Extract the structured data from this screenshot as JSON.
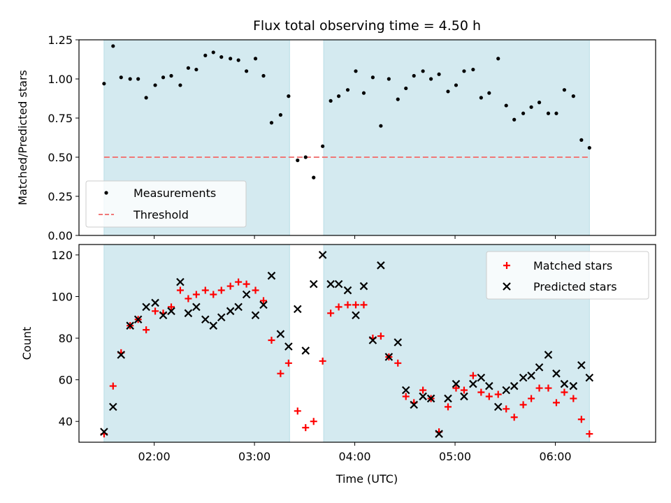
{
  "chart_data": {
    "title": "Flux total observing time = 4.50 h",
    "xlabel": "Time (UTC)",
    "x_unit": "hours UTC",
    "x_ticks": [
      {
        "value": 2.0,
        "label": "02:00"
      },
      {
        "value": 3.0,
        "label": "03:00"
      },
      {
        "value": 4.0,
        "label": "04:00"
      },
      {
        "value": 5.0,
        "label": "05:00"
      },
      {
        "value": 6.0,
        "label": "06:00"
      }
    ],
    "xlim": [
      1.25,
      7.0
    ],
    "shaded_spans": [
      [
        1.5,
        3.35
      ],
      [
        3.69,
        6.34
      ]
    ],
    "shade_color": "#d4eaf0",
    "panels": [
      {
        "type": "scatter",
        "ylabel": "Matched/Predicted stars",
        "ylim": [
          0.0,
          1.25
        ],
        "y_ticks": [
          "0.00",
          "0.25",
          "0.50",
          "0.75",
          "1.00",
          "1.25"
        ],
        "grid": false,
        "legend": {
          "position": "lower-left",
          "entries": [
            "Measurements",
            "Threshold"
          ]
        },
        "threshold": {
          "name": "Threshold",
          "value": 0.5,
          "x_range": [
            1.5,
            6.34
          ],
          "color": "#f07878"
        },
        "series": [
          {
            "name": "Measurements",
            "color": "#000000",
            "marker": "dot",
            "x": [
              1.5,
              1.59,
              1.67,
              1.76,
              1.84,
              1.92,
              2.01,
              2.09,
              2.17,
              2.26,
              2.34,
              2.42,
              2.51,
              2.59,
              2.67,
              2.76,
              2.84,
              2.92,
              3.01,
              3.09,
              3.17,
              3.26,
              3.34,
              3.43,
              3.51,
              3.59,
              3.68,
              3.76,
              3.84,
              3.93,
              4.01,
              4.09,
              4.18,
              4.26,
              4.34,
              4.43,
              4.51,
              4.59,
              4.68,
              4.76,
              4.84,
              4.93,
              5.01,
              5.09,
              5.18,
              5.26,
              5.34,
              5.43,
              5.51,
              5.59,
              5.68,
              5.76,
              5.84,
              5.93,
              6.01,
              6.09,
              6.18,
              6.26,
              6.34
            ],
            "y": [
              0.97,
              1.21,
              1.01,
              1.0,
              1.0,
              0.88,
              0.96,
              1.01,
              1.02,
              0.96,
              1.07,
              1.06,
              1.15,
              1.17,
              1.14,
              1.13,
              1.12,
              1.05,
              1.13,
              1.02,
              0.72,
              0.77,
              0.89,
              0.48,
              0.5,
              0.37,
              0.57,
              0.86,
              0.89,
              0.93,
              1.05,
              0.91,
              1.01,
              0.7,
              1.0,
              0.87,
              0.94,
              1.02,
              1.05,
              1.0,
              1.03,
              0.92,
              0.96,
              1.05,
              1.06,
              0.88,
              0.91,
              1.13,
              0.83,
              0.74,
              0.78,
              0.82,
              0.85,
              0.78,
              0.78,
              0.93,
              0.89,
              0.61,
              0.56
            ]
          }
        ]
      },
      {
        "type": "scatter",
        "ylabel": "Count",
        "ylim": [
          30,
          125
        ],
        "y_ticks": [
          "40",
          "60",
          "80",
          "100",
          "120"
        ],
        "grid": false,
        "legend": {
          "position": "top-right",
          "entries": [
            "Matched stars",
            "Predicted stars"
          ]
        },
        "series": [
          {
            "name": "Matched stars",
            "color": "#ff0000",
            "marker": "plus",
            "x": [
              1.5,
              1.59,
              1.67,
              1.76,
              1.84,
              1.92,
              2.01,
              2.09,
              2.17,
              2.26,
              2.34,
              2.42,
              2.51,
              2.59,
              2.67,
              2.76,
              2.84,
              2.92,
              3.01,
              3.09,
              3.17,
              3.26,
              3.34,
              3.43,
              3.51,
              3.59,
              3.68,
              3.76,
              3.84,
              3.93,
              4.01,
              4.09,
              4.18,
              4.26,
              4.34,
              4.43,
              4.51,
              4.59,
              4.68,
              4.76,
              4.84,
              4.93,
              5.01,
              5.09,
              5.18,
              5.26,
              5.34,
              5.43,
              5.51,
              5.59,
              5.68,
              5.76,
              5.84,
              5.93,
              6.01,
              6.09,
              6.18,
              6.26,
              6.34
            ],
            "y": [
              34,
              57,
              73,
              86,
              89,
              84,
              93,
              92,
              95,
              103,
              99,
              101,
              103,
              101,
              103,
              105,
              107,
              106,
              103,
              98,
              79,
              63,
              68,
              45,
              37,
              40,
              69,
              92,
              95,
              96,
              96,
              96,
              80,
              81,
              71,
              68,
              52,
              49,
              55,
              51,
              35,
              47,
              56,
              55,
              62,
              54,
              52,
              53,
              46,
              42,
              48,
              51,
              56,
              56,
              49,
              54,
              51,
              41,
              34
            ]
          },
          {
            "name": "Predicted stars",
            "color": "#000000",
            "marker": "x",
            "x": [
              1.5,
              1.59,
              1.67,
              1.76,
              1.84,
              1.92,
              2.01,
              2.09,
              2.17,
              2.26,
              2.34,
              2.42,
              2.51,
              2.59,
              2.67,
              2.76,
              2.84,
              2.92,
              3.01,
              3.09,
              3.17,
              3.26,
              3.34,
              3.43,
              3.51,
              3.59,
              3.68,
              3.76,
              3.84,
              3.93,
              4.01,
              4.09,
              4.18,
              4.26,
              4.34,
              4.43,
              4.51,
              4.59,
              4.68,
              4.76,
              4.84,
              4.93,
              5.01,
              5.09,
              5.18,
              5.26,
              5.34,
              5.43,
              5.51,
              5.59,
              5.68,
              5.76,
              5.84,
              5.93,
              6.01,
              6.09,
              6.18,
              6.26,
              6.34
            ],
            "y": [
              35,
              47,
              72,
              86,
              89,
              95,
              97,
              91,
              93,
              107,
              92,
              95,
              89,
              86,
              90,
              93,
              95,
              101,
              91,
              96,
              110,
              82,
              76,
              94,
              74,
              106,
              120,
              106,
              106,
              103,
              91,
              105,
              79,
              115,
              71,
              78,
              55,
              48,
              52,
              51,
              34,
              51,
              58,
              52,
              58,
              61,
              57,
              47,
              55,
              57,
              61,
              62,
              66,
              72,
              63,
              58,
              57,
              67,
              61
            ]
          }
        ]
      }
    ]
  }
}
